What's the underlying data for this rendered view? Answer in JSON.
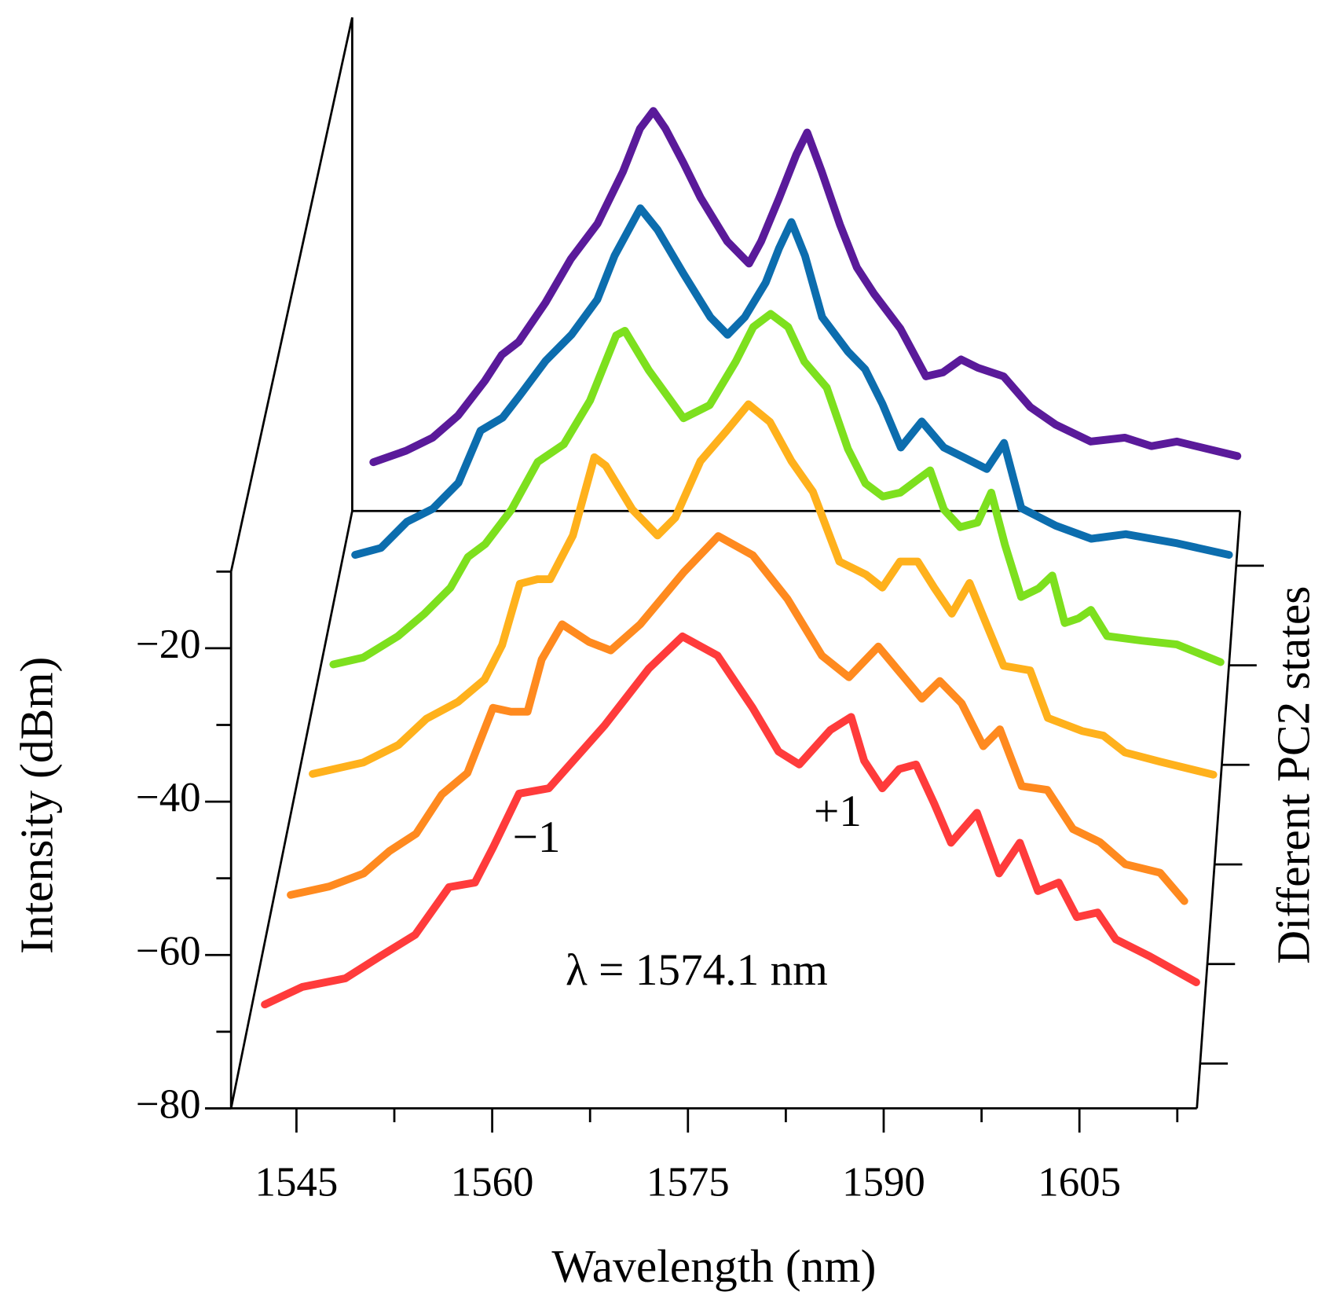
{
  "chart_data": {
    "type": "line",
    "xlabel": "Wavelength (nm)",
    "ylabel": "Intensity (dBm)",
    "zlabel": "Different PC2 states",
    "annotations": [
      "−1",
      "+1",
      "λ = 1574.1 nm"
    ],
    "xlim": [
      1538,
      1614
    ],
    "xticks": [
      1545,
      1560,
      1575,
      1590,
      1605
    ],
    "ylim": [
      -80,
      -10
    ],
    "yticks": [
      {
        "value": -20,
        "label": "−20"
      },
      {
        "value": -40,
        "label": "−40"
      },
      {
        "value": -60,
        "label": "−60"
      },
      {
        "value": -80,
        "label": "−80"
      }
    ],
    "series": [
      {
        "color": "#ff3b3b",
        "x": [
          1541.9,
          1544.8,
          1548.1,
          1550.8,
          1553.5,
          1556.1,
          1558.1,
          1559.5,
          1561.5,
          1563.8,
          1568.1,
          1571.5,
          1574.1,
          1576.8,
          1579.5,
          1581.5,
          1583.1,
          1585.5,
          1587.1,
          1588.1,
          1589.5,
          1590.8,
          1592.1,
          1593.5,
          1594.8,
          1596.8,
          1598.5,
          1600.1,
          1601.5,
          1603.1,
          1604.5,
          1606.1,
          1607.5,
          1610.1,
          1613.7
        ],
        "values": [
          -72.3,
          -70.0,
          -68.9,
          -66.0,
          -63.2,
          -57.0,
          -56.4,
          -51.8,
          -44.8,
          -44.1,
          -35.9,
          -28.5,
          -24.3,
          -26.8,
          -33.6,
          -39.3,
          -41.0,
          -36.5,
          -34.8,
          -40.5,
          -44.1,
          -41.6,
          -41.0,
          -46.1,
          -51.2,
          -47.3,
          -55.2,
          -51.2,
          -57.5,
          -56.4,
          -60.9,
          -60.3,
          -63.8,
          -66.0,
          -69.4
        ]
      },
      {
        "color": "#ff8a1f",
        "x": [
          1542.4,
          1545.4,
          1548.1,
          1550.1,
          1552.2,
          1554.2,
          1556.2,
          1558.2,
          1559.6,
          1560.9,
          1562.0,
          1563.6,
          1565.7,
          1567.4,
          1569.7,
          1573.1,
          1575.8,
          1578.5,
          1581.2,
          1583.9,
          1586.0,
          1588.3,
          1590.0,
          1591.7,
          1593.1,
          1594.8,
          1596.5,
          1597.8,
          1599.5,
          1601.5,
          1603.5,
          1605.6,
          1607.6,
          1610.3,
          1612.2
        ],
        "values": [
          -71.0,
          -69.9,
          -68.2,
          -65.3,
          -63.0,
          -57.9,
          -55.1,
          -46.6,
          -47.1,
          -47.1,
          -40.3,
          -35.7,
          -38.0,
          -39.1,
          -35.7,
          -28.9,
          -24.2,
          -26.7,
          -32.4,
          -39.8,
          -42.6,
          -38.6,
          -42.0,
          -45.4,
          -43.1,
          -46.0,
          -51.6,
          -49.4,
          -56.8,
          -57.3,
          -62.4,
          -64.1,
          -67.0,
          -68.1,
          -71.8
        ]
      },
      {
        "color": "#ffb11c",
        "x": [
          1542.6,
          1546.6,
          1549.4,
          1551.6,
          1554.1,
          1556.2,
          1557.6,
          1559.0,
          1560.4,
          1561.4,
          1563.2,
          1564.9,
          1565.8,
          1567.9,
          1569.9,
          1571.3,
          1573.3,
          1575.4,
          1577.1,
          1578.8,
          1580.5,
          1582.2,
          1584.3,
          1586.4,
          1587.7,
          1589.1,
          1590.5,
          1591.8,
          1593.2,
          1594.6,
          1595.9,
          1597.3,
          1599.4,
          1600.8,
          1603.5,
          1605.2,
          1606.9,
          1609.7,
          1613.9
        ],
        "values": [
          -68.2,
          -66.7,
          -64.4,
          -61.0,
          -58.8,
          -55.9,
          -51.4,
          -43.4,
          -42.8,
          -42.8,
          -37.1,
          -26.9,
          -28.0,
          -33.7,
          -37.1,
          -34.8,
          -27.4,
          -23.4,
          -20.0,
          -22.3,
          -27.4,
          -31.4,
          -40.5,
          -42.2,
          -43.9,
          -40.5,
          -40.5,
          -43.9,
          -47.3,
          -43.3,
          -48.5,
          -54.1,
          -54.7,
          -60.9,
          -62.6,
          -63.2,
          -65.4,
          -66.6,
          -68.3
        ]
      },
      {
        "color": "#7de01e",
        "x": [
          1542.7,
          1545.1,
          1547.9,
          1550.0,
          1552.1,
          1553.5,
          1554.9,
          1557.0,
          1559.1,
          1561.2,
          1563.3,
          1565.4,
          1566.1,
          1568.0,
          1570.8,
          1572.9,
          1575.0,
          1576.4,
          1577.8,
          1579.2,
          1580.5,
          1582.3,
          1584.0,
          1585.4,
          1586.8,
          1588.2,
          1589.6,
          1590.6,
          1591.7,
          1593.0,
          1594.4,
          1595.5,
          1596.6,
          1597.9,
          1599.3,
          1600.4,
          1601.4,
          1602.5,
          1603.5,
          1604.8,
          1607.6,
          1610.4,
          1613.9
        ],
        "values": [
          -66.9,
          -66.0,
          -63.2,
          -60.3,
          -56.9,
          -52.9,
          -51.2,
          -46.7,
          -40.5,
          -38.2,
          -32.5,
          -24.0,
          -23.4,
          -28.5,
          -34.8,
          -33.1,
          -27.4,
          -22.9,
          -21.2,
          -22.9,
          -27.4,
          -30.8,
          -38.8,
          -43.3,
          -45.0,
          -44.5,
          -42.8,
          -41.6,
          -46.7,
          -49.0,
          -48.4,
          -44.5,
          -51.3,
          -58.1,
          -57.0,
          -55.3,
          -61.5,
          -60.9,
          -59.8,
          -63.2,
          -63.8,
          -64.3,
          -66.6
        ]
      },
      {
        "color": "#0c6dae",
        "x": [
          1542.9,
          1545.0,
          1547.1,
          1549.2,
          1551.3,
          1553.1,
          1554.9,
          1556.3,
          1558.4,
          1560.5,
          1562.6,
          1564.0,
          1566.1,
          1567.5,
          1569.6,
          1571.8,
          1573.2,
          1574.6,
          1576.3,
          1577.4,
          1578.4,
          1579.5,
          1580.9,
          1583.0,
          1584.4,
          1585.8,
          1587.3,
          1589.0,
          1590.8,
          1592.2,
          1594.3,
          1595.7,
          1597.1,
          1599.9,
          1602.8,
          1605.6,
          1609.8,
          1614.0
        ],
        "values": [
          -65.6,
          -64.7,
          -61.3,
          -59.6,
          -56.2,
          -49.4,
          -47.7,
          -44.8,
          -40.3,
          -36.9,
          -32.3,
          -26.6,
          -20.4,
          -23.2,
          -28.9,
          -34.6,
          -36.9,
          -34.6,
          -30.1,
          -25.6,
          -22.2,
          -26.6,
          -34.6,
          -39.1,
          -41.4,
          -45.9,
          -51.6,
          -48.2,
          -51.6,
          -52.7,
          -54.4,
          -51.0,
          -59.5,
          -61.8,
          -63.5,
          -62.9,
          -64.1,
          -65.6
        ]
      },
      {
        "color": "#5a1a9a",
        "x": [
          1542.8,
          1545.5,
          1547.7,
          1549.8,
          1552.0,
          1553.4,
          1554.8,
          1557.0,
          1559.1,
          1561.3,
          1563.4,
          1564.8,
          1565.9,
          1566.9,
          1568.4,
          1569.8,
          1572.0,
          1573.8,
          1574.8,
          1576.3,
          1577.7,
          1578.6,
          1579.8,
          1581.3,
          1582.7,
          1584.1,
          1586.3,
          1588.4,
          1589.8,
          1591.3,
          1592.7,
          1594.8,
          1597.0,
          1599.1,
          1602.0,
          1604.8,
          1607.0,
          1609.1,
          1614.1
        ],
        "values": [
          -66.5,
          -65.0,
          -63.3,
          -60.4,
          -55.9,
          -52.5,
          -50.8,
          -45.7,
          -40.0,
          -35.4,
          -28.6,
          -23.0,
          -20.7,
          -23.0,
          -27.5,
          -32.0,
          -37.7,
          -40.6,
          -37.7,
          -32.0,
          -26.4,
          -23.5,
          -28.6,
          -35.5,
          -41.1,
          -44.5,
          -49.1,
          -55.3,
          -54.8,
          -53.1,
          -54.2,
          -55.3,
          -59.3,
          -61.6,
          -63.8,
          -63.3,
          -64.4,
          -63.8,
          -65.7
        ]
      }
    ]
  }
}
